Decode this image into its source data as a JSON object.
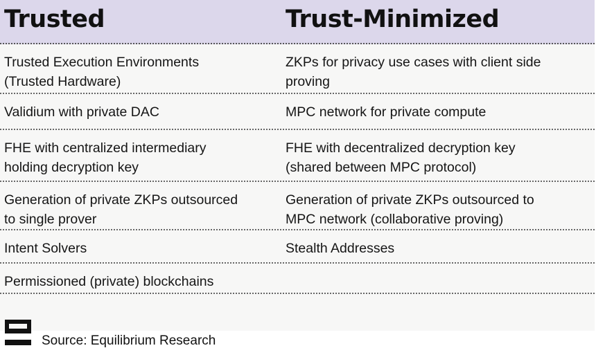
{
  "header": {
    "left": "Trusted",
    "right": "Trust-Minimized"
  },
  "rows": [
    {
      "left": [
        "Trusted Execution Environments",
        "(Trusted Hardware)"
      ],
      "right": [
        "ZKPs for privacy use cases with client side",
        "proving"
      ]
    },
    {
      "left": [
        "Validium with private DAC"
      ],
      "right": [
        "MPC network for private compute"
      ]
    },
    {
      "left": [
        "FHE with centralized intermediary",
        "holding decryption key"
      ],
      "right": [
        "FHE with decentralized decryption key",
        "(shared between MPC protocol)"
      ]
    },
    {
      "left": [
        "Generation of private ZKPs outsourced",
        "to single prover"
      ],
      "right": [
        "Generation of private ZKPs outsourced to",
        "MPC network (collaborative proving)"
      ]
    },
    {
      "left": [
        "Intent Solvers"
      ],
      "right": [
        "Stealth Addresses"
      ]
    },
    {
      "left": [
        "Permissioned (private) blockchains"
      ],
      "right": [
        ""
      ]
    }
  ],
  "footer": {
    "source": "Source: Equilibrium Research",
    "logo_icon": "equilibrium-logo-icon"
  },
  "colors": {
    "header_bg": "#dcd7eb",
    "body_bg": "#f7f7f6"
  }
}
